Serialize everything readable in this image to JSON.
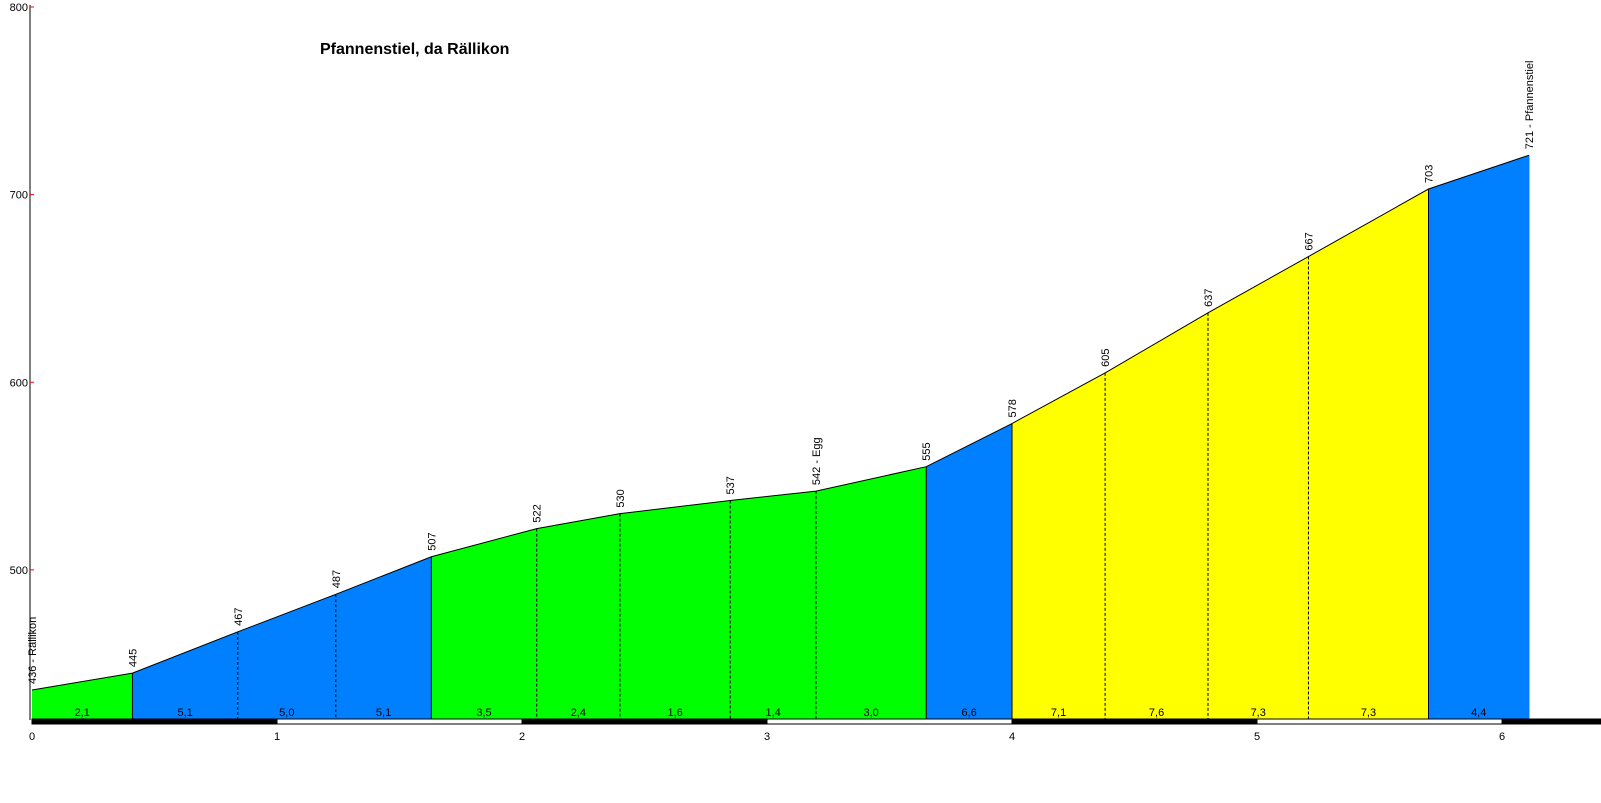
{
  "chart_data": {
    "type": "area",
    "title": "Pfannenstiel, da Rällikon",
    "xlabel": "",
    "ylabel": "",
    "xlim": [
      0,
      6.4
    ],
    "ylim": [
      420,
      800
    ],
    "y_ticks": [
      500,
      600,
      700,
      800
    ],
    "x_ticks": [
      0,
      1,
      2,
      3,
      4,
      5,
      6
    ],
    "grid": false,
    "colors": {
      "green": "#00ff00",
      "blue": "#0080ff",
      "yellow": "#ffff00",
      "outline": "#000000"
    },
    "points": [
      {
        "x": 0.0,
        "y": 436,
        "label": "436 - Rällikon"
      },
      {
        "x": 0.41,
        "y": 445,
        "label": "445"
      },
      {
        "x": 0.84,
        "y": 467,
        "label": "467"
      },
      {
        "x": 1.24,
        "y": 487,
        "label": "487"
      },
      {
        "x": 1.63,
        "y": 507,
        "label": "507"
      },
      {
        "x": 2.06,
        "y": 522,
        "label": "522"
      },
      {
        "x": 2.4,
        "y": 530,
        "label": "530"
      },
      {
        "x": 2.85,
        "y": 537,
        "label": "537"
      },
      {
        "x": 3.2,
        "y": 542,
        "label": "542 - Egg"
      },
      {
        "x": 3.65,
        "y": 555,
        "label": "555"
      },
      {
        "x": 4.0,
        "y": 578,
        "label": "578"
      },
      {
        "x": 4.38,
        "y": 605,
        "label": "605"
      },
      {
        "x": 4.8,
        "y": 637,
        "label": "637"
      },
      {
        "x": 5.21,
        "y": 667,
        "label": "667"
      },
      {
        "x": 5.7,
        "y": 703,
        "label": "703"
      },
      {
        "x": 6.11,
        "y": 721,
        "label": "721 - Pfannenstiel"
      }
    ],
    "segments": [
      {
        "gradient": "2,1",
        "color": "green"
      },
      {
        "gradient": "5,1",
        "color": "blue"
      },
      {
        "gradient": "5,0",
        "color": "blue"
      },
      {
        "gradient": "5,1",
        "color": "blue"
      },
      {
        "gradient": "3,5",
        "color": "green"
      },
      {
        "gradient": "2,4",
        "color": "green"
      },
      {
        "gradient": "1,6",
        "color": "green"
      },
      {
        "gradient": "1,4",
        "color": "green"
      },
      {
        "gradient": "3,0",
        "color": "green"
      },
      {
        "gradient": "6,6",
        "color": "blue"
      },
      {
        "gradient": "7,1",
        "color": "yellow"
      },
      {
        "gradient": "7,6",
        "color": "yellow"
      },
      {
        "gradient": "7,3",
        "color": "yellow"
      },
      {
        "gradient": "7,3",
        "color": "yellow"
      },
      {
        "gradient": "4,4",
        "color": "blue"
      }
    ]
  }
}
